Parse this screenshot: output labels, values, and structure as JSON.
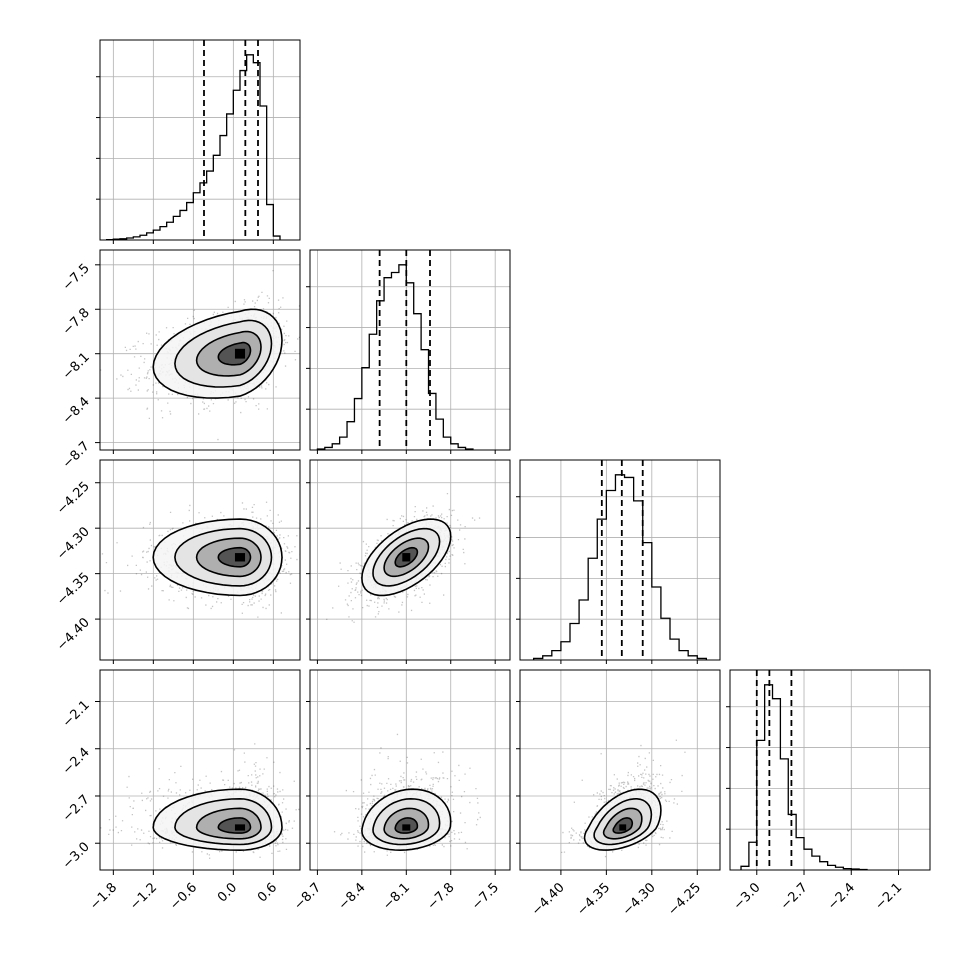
{
  "chart_data": {
    "type": "corner",
    "grid": true,
    "parameters": [
      {
        "range": [
          -2.0,
          1.0
        ],
        "ticks": [
          -1.8,
          -1.2,
          -0.6,
          0.0,
          0.6
        ],
        "tick_labels": [
          "−1.8",
          "−1.2",
          "−0.6",
          "0.0",
          "0.6"
        ],
        "mean": 0.1,
        "sd": 0.42,
        "skew": "left",
        "quantiles": [
          -0.44,
          0.18,
          0.37
        ]
      },
      {
        "range": [
          -8.75,
          -7.4
        ],
        "ticks": [
          -8.7,
          -8.4,
          -8.1,
          -7.8,
          -7.5
        ],
        "tick_labels": [
          "−8.7",
          "−8.4",
          "−8.1",
          "−7.8",
          "−7.5"
        ],
        "mean": -8.1,
        "sd": 0.15,
        "skew": "none",
        "quantiles": [
          -8.28,
          -8.1,
          -7.94
        ]
      },
      {
        "range": [
          -4.445,
          -4.225
        ],
        "ticks": [
          -4.4,
          -4.35,
          -4.3,
          -4.25
        ],
        "tick_labels": [
          "−4.40",
          "−4.35",
          "−4.30",
          "−4.25"
        ],
        "mean": -4.332,
        "sd": 0.021,
        "skew": "none",
        "quantiles": [
          -4.355,
          -4.333,
          -4.31
        ]
      },
      {
        "range": [
          -3.17,
          -1.9
        ],
        "ticks": [
          -3.0,
          -2.7,
          -2.4,
          -2.1
        ],
        "tick_labels": [
          "−3.0",
          "−2.7",
          "−2.4",
          "−2.1"
        ],
        "mean": -2.9,
        "sd": 0.09,
        "skew": "right",
        "quantiles": [
          -3.0,
          -2.92,
          -2.78
        ]
      }
    ],
    "histograms": [
      {
        "param": 0,
        "bin_edges": [
          -1.9,
          -1.8,
          -1.7,
          -1.6,
          -1.5,
          -1.4,
          -1.3,
          -1.2,
          -1.1,
          -1.0,
          -0.9,
          -0.8,
          -0.7,
          -0.6,
          -0.5,
          -0.4,
          -0.3,
          -0.2,
          -0.1,
          0.0,
          0.1,
          0.2,
          0.3,
          0.4,
          0.5,
          0.6,
          0.7
        ],
        "counts": [
          1,
          2,
          3,
          5,
          8,
          12,
          18,
          25,
          34,
          45,
          60,
          75,
          95,
          120,
          145,
          175,
          215,
          265,
          320,
          380,
          430,
          470,
          450,
          340,
          90,
          10
        ]
      },
      {
        "param": 1,
        "bin_edges": [
          -8.7,
          -8.65,
          -8.6,
          -8.55,
          -8.5,
          -8.45,
          -8.4,
          -8.35,
          -8.3,
          -8.25,
          -8.2,
          -8.15,
          -8.1,
          -8.05,
          -8.0,
          -7.95,
          -7.9,
          -7.85,
          -7.8,
          -7.75,
          -7.7,
          -7.65
        ],
        "counts": [
          2,
          5,
          12,
          25,
          55,
          100,
          160,
          225,
          290,
          335,
          345,
          360,
          325,
          265,
          195,
          110,
          60,
          25,
          12,
          5,
          2
        ]
      },
      {
        "param": 2,
        "bin_edges": [
          -4.43,
          -4.42,
          -4.41,
          -4.4,
          -4.39,
          -4.38,
          -4.37,
          -4.36,
          -4.35,
          -4.34,
          -4.33,
          -4.32,
          -4.31,
          -4.3,
          -4.29,
          -4.28,
          -4.27,
          -4.26,
          -4.25,
          -4.24
        ],
        "counts": [
          3,
          8,
          18,
          35,
          70,
          115,
          195,
          270,
          325,
          355,
          350,
          305,
          225,
          140,
          80,
          40,
          18,
          8,
          3
        ]
      },
      {
        "param": 3,
        "bin_edges": [
          -3.1,
          -3.05,
          -3.0,
          -2.95,
          -2.9,
          -2.85,
          -2.8,
          -2.75,
          -2.7,
          -2.65,
          -2.6,
          -2.55,
          -2.5,
          -2.45,
          -2.4,
          -2.35,
          -2.3
        ],
        "counts": [
          8,
          60,
          280,
          400,
          370,
          240,
          120,
          70,
          45,
          30,
          18,
          10,
          6,
          3,
          2,
          1
        ]
      }
    ],
    "pair_panels": [
      {
        "row": 1,
        "col": 0,
        "x_param": 0,
        "y_param": 1,
        "rho": 0.3
      },
      {
        "row": 2,
        "col": 0,
        "x_param": 0,
        "y_param": 2,
        "rho": 0.0
      },
      {
        "row": 2,
        "col": 1,
        "x_param": 1,
        "y_param": 2,
        "rho": 0.55
      },
      {
        "row": 3,
        "col": 0,
        "x_param": 0,
        "y_param": 3,
        "rho": 0.0
      },
      {
        "row": 3,
        "col": 1,
        "x_param": 1,
        "y_param": 3,
        "rho": 0.15
      },
      {
        "row": 3,
        "col": 2,
        "x_param": 2,
        "y_param": 3,
        "rho": 0.45
      }
    ],
    "y_tick_params": [
      1,
      2,
      3
    ],
    "x_tick_params": [
      0,
      1,
      2,
      3
    ]
  }
}
